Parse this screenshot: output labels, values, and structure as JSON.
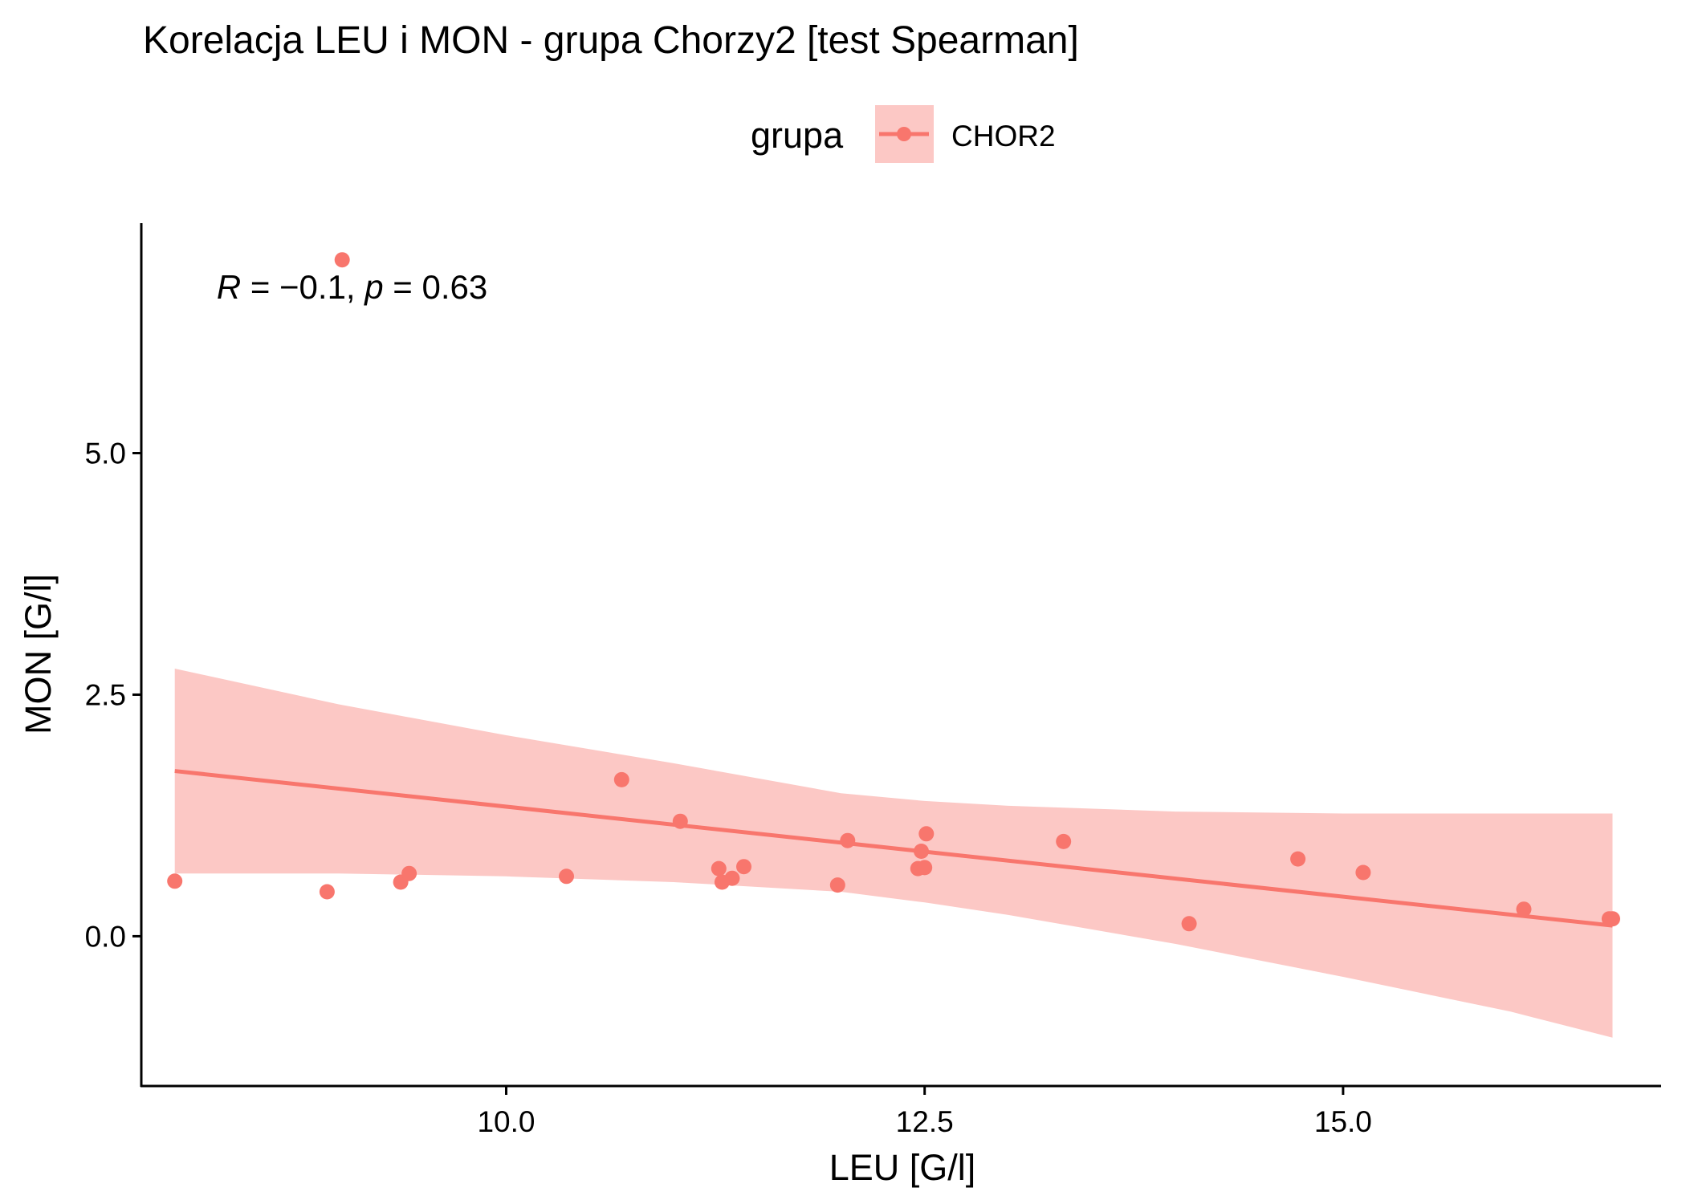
{
  "chart_data": {
    "type": "scatter",
    "title": "Korelacja LEU i MON - grupa Chorzy2 [test Spearman]",
    "xlabel": "LEU [G/l]",
    "ylabel": "MON [G/l]",
    "xlim": [
      7.82,
      16.9
    ],
    "ylim": [
      -1.55,
      7.38
    ],
    "x_ticks": [
      10.0,
      12.5,
      15.0
    ],
    "x_tick_labels": [
      "10.0",
      "12.5",
      "15.0"
    ],
    "y_ticks": [
      0.0,
      2.5,
      5.0
    ],
    "y_tick_labels": [
      "0.0",
      "2.5",
      "5.0"
    ],
    "legend": {
      "title": "grupa",
      "position": "top",
      "entries": [
        {
          "label": "CHOR2",
          "color": "#F8766D"
        }
      ]
    },
    "annotation": {
      "r_label": "R",
      "r_value": " = −0.1, ",
      "p_label": "p",
      "p_value": " = 0.63",
      "x": 8.27,
      "y": 6.6
    },
    "series": [
      {
        "name": "CHOR2",
        "color": "#F8766D",
        "ribbon_color": "#F8766D",
        "points": [
          [
            8.02,
            0.57
          ],
          [
            8.93,
            0.46
          ],
          [
            9.02,
            7.0
          ],
          [
            9.37,
            0.56
          ],
          [
            9.42,
            0.65
          ],
          [
            10.36,
            0.62
          ],
          [
            10.69,
            1.62
          ],
          [
            11.04,
            1.19
          ],
          [
            11.27,
            0.7
          ],
          [
            11.29,
            0.56
          ],
          [
            11.35,
            0.6
          ],
          [
            11.42,
            0.72
          ],
          [
            11.98,
            0.53
          ],
          [
            12.04,
            0.99
          ],
          [
            12.46,
            0.7
          ],
          [
            12.48,
            0.88
          ],
          [
            12.5,
            0.71
          ],
          [
            12.51,
            1.06
          ],
          [
            13.33,
            0.98
          ],
          [
            14.08,
            0.13
          ],
          [
            14.73,
            0.8
          ],
          [
            15.12,
            0.66
          ],
          [
            16.08,
            0.28
          ],
          [
            16.59,
            0.18
          ],
          [
            16.61,
            0.18
          ]
        ],
        "fit": {
          "x": [
            8.02,
            16.61
          ],
          "y": [
            1.71,
            0.11
          ]
        },
        "confidence_band": [
          {
            "x": 8.02,
            "lower": 0.65,
            "upper": 2.77
          },
          {
            "x": 9.0,
            "lower": 0.65,
            "upper": 2.4
          },
          {
            "x": 10.0,
            "lower": 0.62,
            "upper": 2.08
          },
          {
            "x": 11.0,
            "lower": 0.56,
            "upper": 1.79
          },
          {
            "x": 12.0,
            "lower": 0.46,
            "upper": 1.48
          },
          {
            "x": 12.5,
            "lower": 0.35,
            "upper": 1.4
          },
          {
            "x": 13.0,
            "lower": 0.22,
            "upper": 1.35
          },
          {
            "x": 14.0,
            "lower": -0.08,
            "upper": 1.29
          },
          {
            "x": 15.0,
            "lower": -0.42,
            "upper": 1.27
          },
          {
            "x": 16.0,
            "lower": -0.78,
            "upper": 1.27
          },
          {
            "x": 16.61,
            "lower": -1.05,
            "upper": 1.27
          }
        ]
      }
    ]
  }
}
